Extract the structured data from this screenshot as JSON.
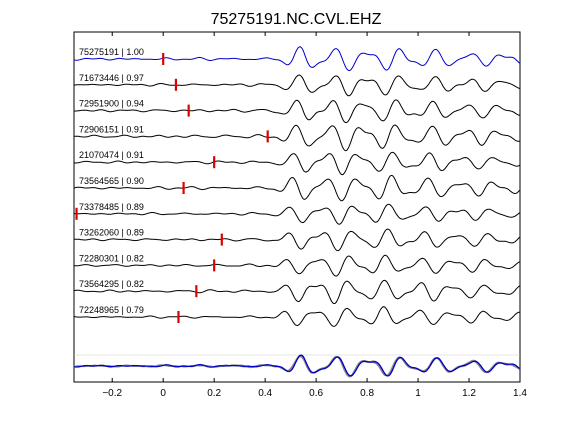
{
  "chart_data": {
    "type": "line",
    "title": "75275191.NC.CVL.EHZ",
    "xlabel": "",
    "ylabel": "",
    "xlim": [
      -0.35,
      1.4
    ],
    "xticks": [
      -0.2,
      0,
      0.2,
      0.4,
      0.6,
      0.8,
      1,
      1.2,
      1.4
    ],
    "xtick_labels": [
      "−0.2",
      "0",
      "0.2",
      "0.4",
      "0.6",
      "0.8",
      "1",
      "1.2",
      "1.4"
    ],
    "grid": false,
    "legend": "none",
    "series": [
      {
        "label": "75275191 | 1.00",
        "pick": 0.0,
        "color": "#0000cc"
      },
      {
        "label": "71673446 | 0.97",
        "pick": 0.05,
        "color": "#000000"
      },
      {
        "label": "72951900 | 0.94",
        "pick": 0.1,
        "color": "#000000"
      },
      {
        "label": "72906151 | 0.91",
        "pick": 0.41,
        "color": "#000000"
      },
      {
        "label": "21070474 | 0.91",
        "pick": 0.2,
        "color": "#000000"
      },
      {
        "label": "73564565 | 0.90",
        "pick": 0.08,
        "color": "#000000"
      },
      {
        "label": "73378485 | 0.89",
        "pick": -0.34,
        "color": "#000000"
      },
      {
        "label": "73262060 | 0.89",
        "pick": 0.23,
        "color": "#000000"
      },
      {
        "label": "72280301 | 0.82",
        "pick": 0.2,
        "color": "#000000"
      },
      {
        "label": "73564295 | 0.82",
        "pick": 0.13,
        "color": "#000000"
      },
      {
        "label": "72248965 | 0.79",
        "pick": 0.06,
        "color": "#000000"
      }
    ],
    "stack": {
      "description": "overlay of all traces",
      "colors": [
        "#888888",
        "#0000cc"
      ]
    },
    "pick_color": "#dd0000"
  }
}
